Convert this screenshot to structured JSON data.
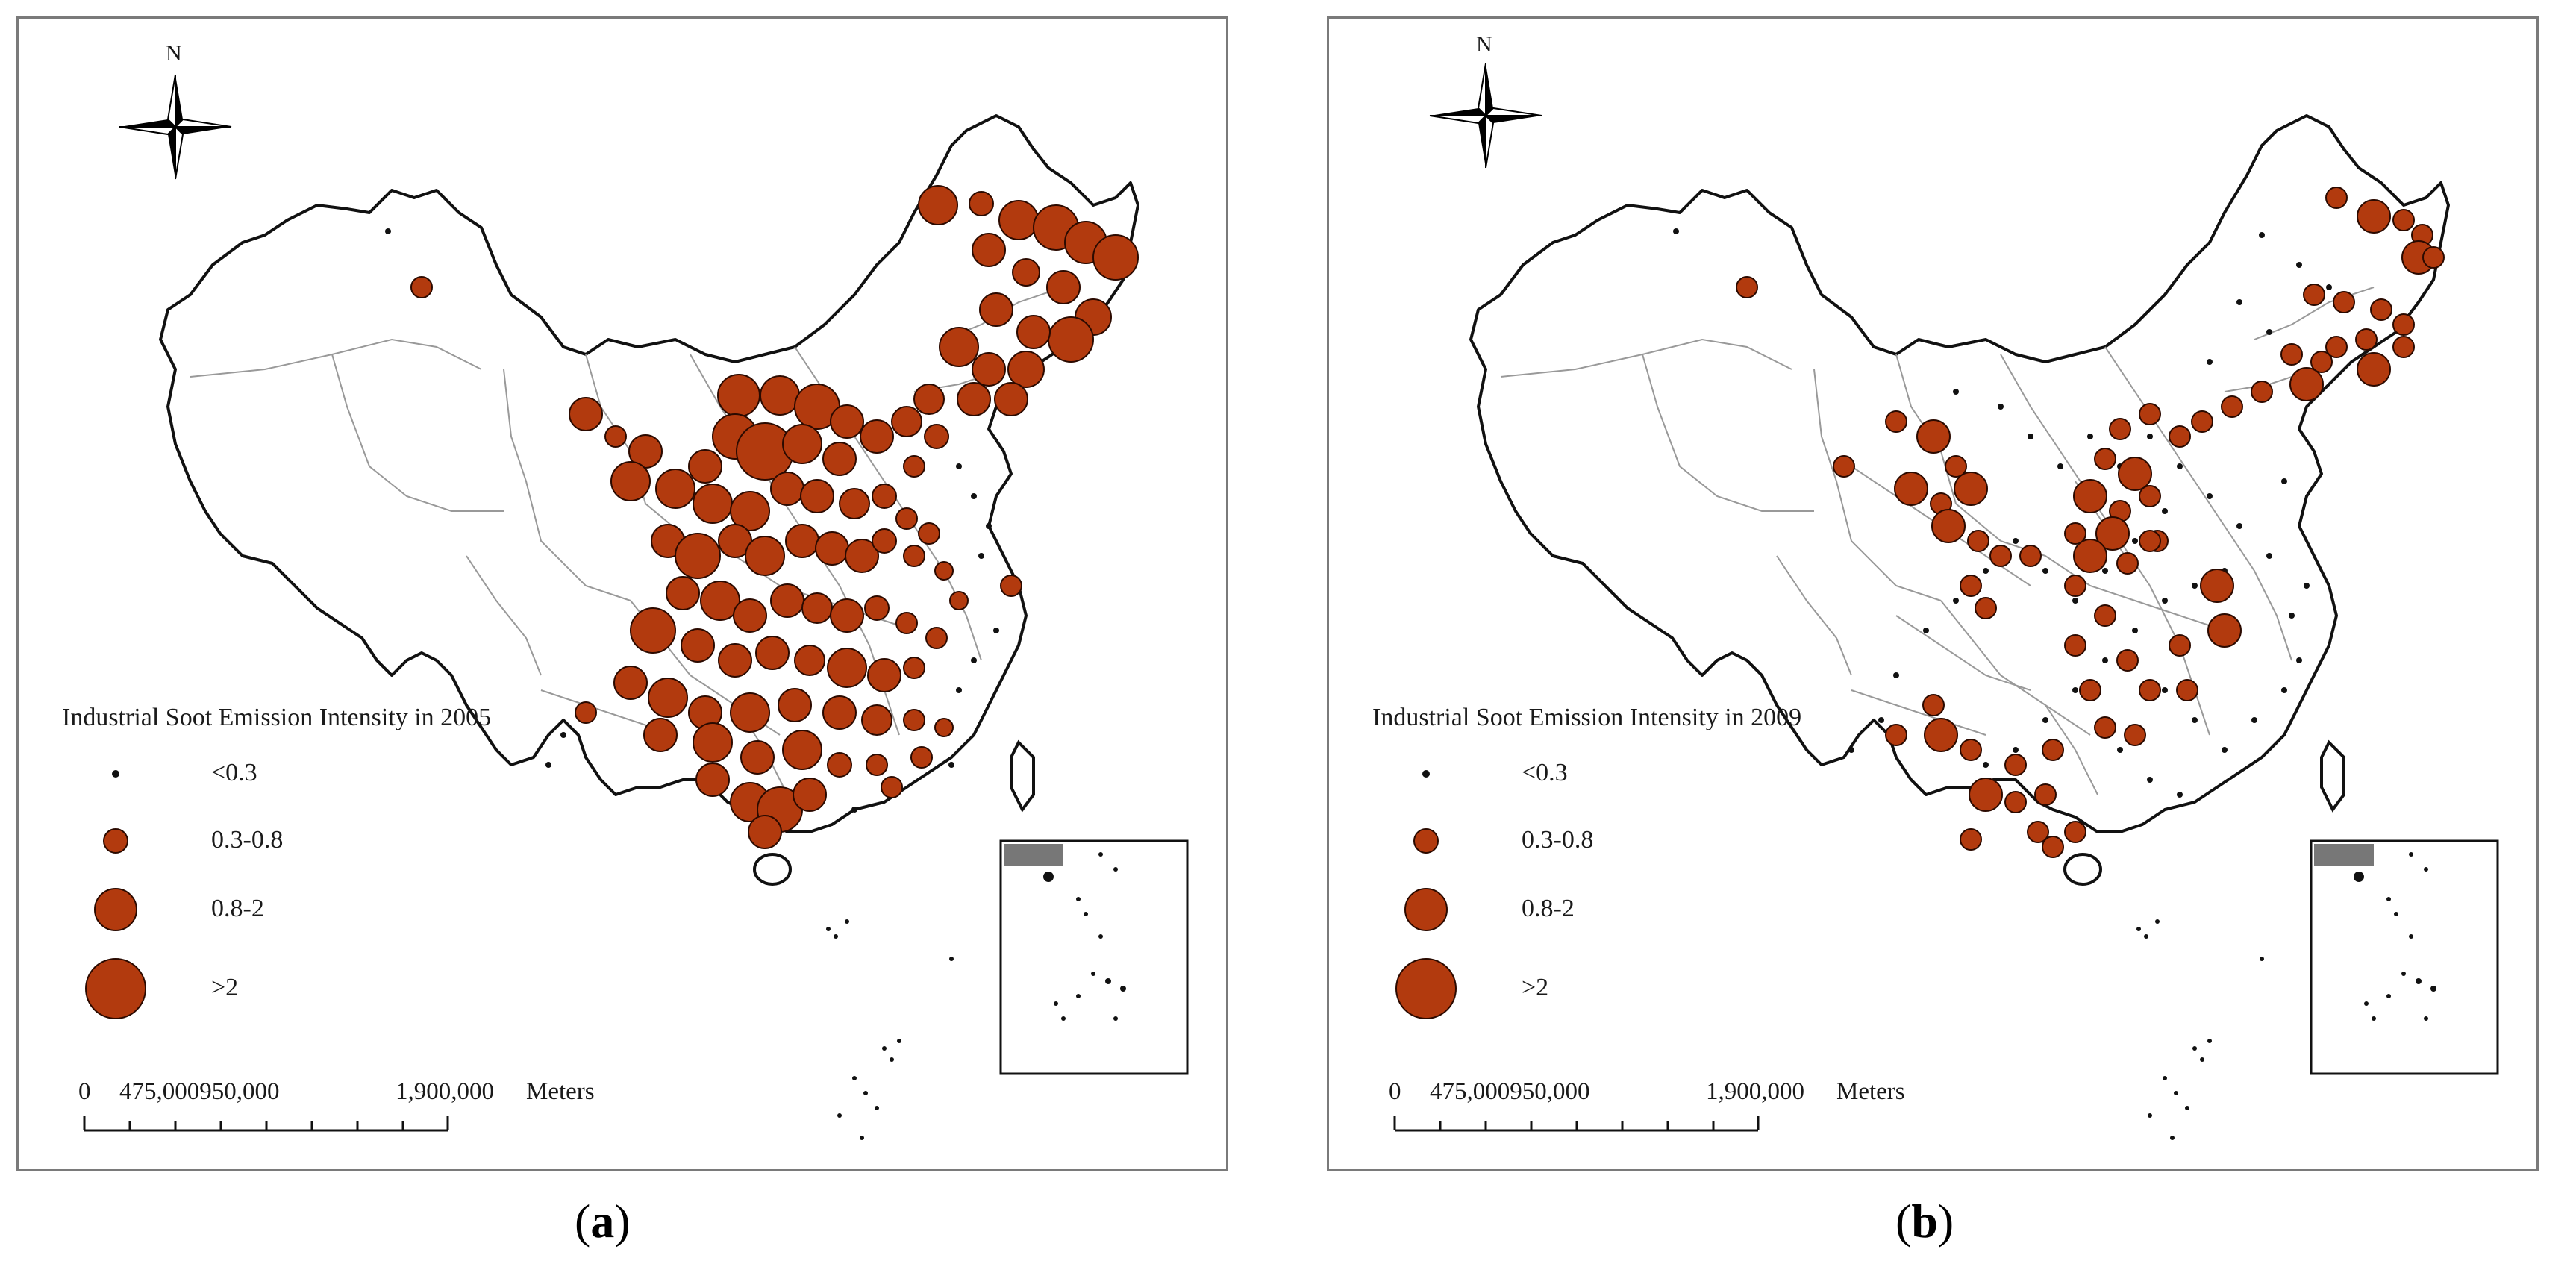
{
  "panels": [
    {
      "id": "a",
      "caption_letter": "a",
      "legend_title": "Industrial Soot Emission Intensity in 2005",
      "north": "N",
      "legend_classes": [
        "<0.3",
        "0.3-0.8",
        "0.8-2",
        ">2"
      ],
      "scale_labels": {
        "zero": "0",
        "mid": "475,000950,000",
        "end": "1,900,000",
        "unit": "Meters"
      }
    },
    {
      "id": "b",
      "caption_letter": "b",
      "legend_title": "Industrial Soot Emission Intensity in 2009",
      "north": "N",
      "legend_classes": [
        "<0.3",
        "0.3-0.8",
        "0.8-2",
        ">2"
      ],
      "scale_labels": {
        "zero": "0",
        "mid": "475,000950,000",
        "end": "1,900,000",
        "unit": "Meters"
      }
    }
  ],
  "colors": {
    "symbol_fill": "#b23a0e",
    "symbol_stroke": "#2b0a00",
    "boundary": "#111111",
    "inner_boundary": "#999999",
    "frame": "#7a7a7a"
  }
}
